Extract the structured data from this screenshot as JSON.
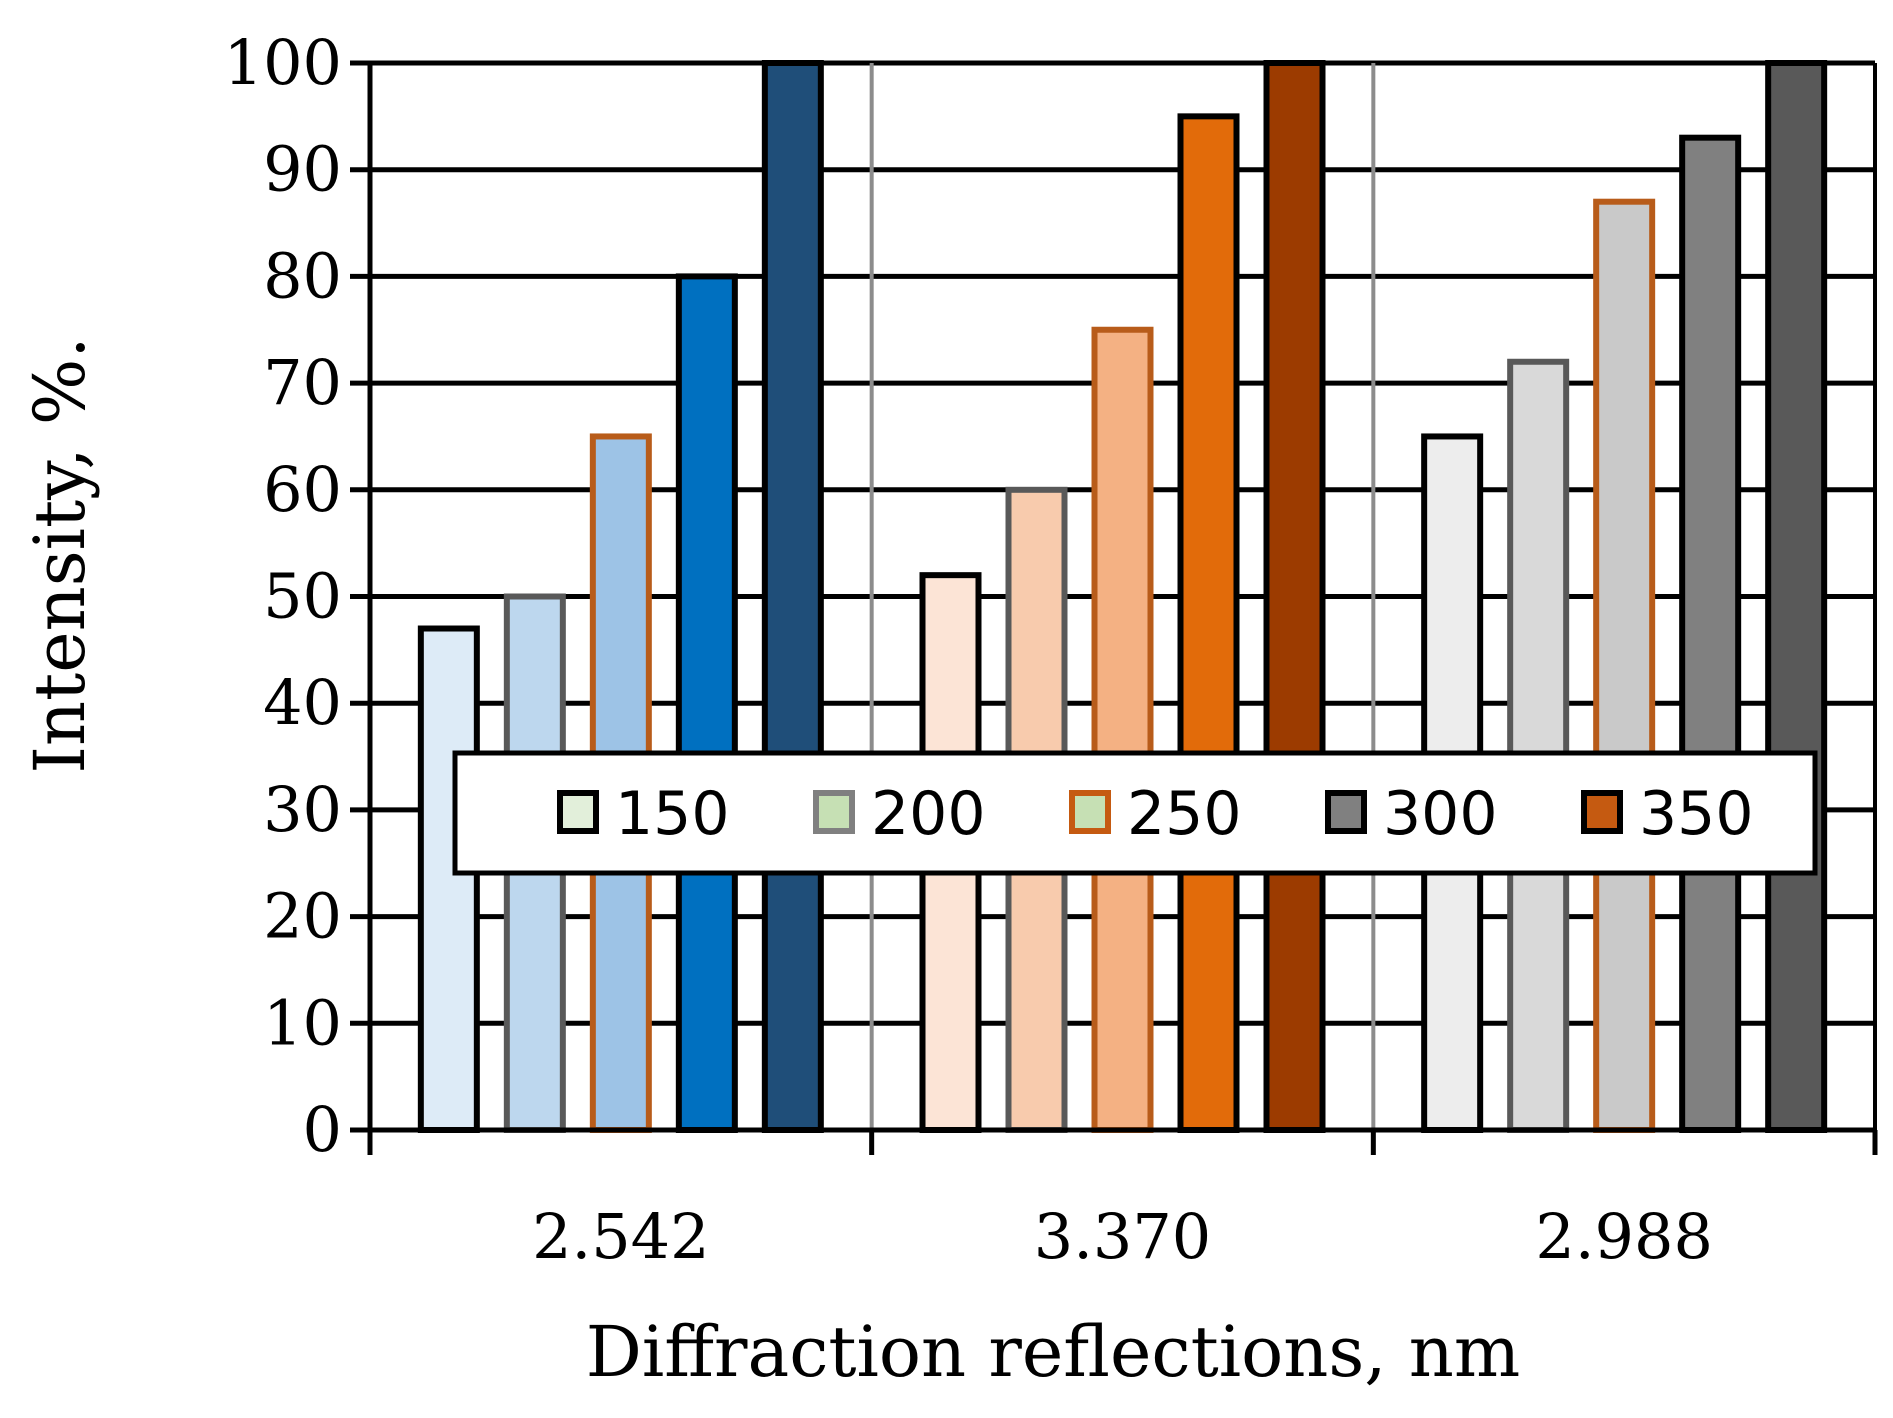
{
  "chart_data": {
    "type": "bar",
    "title": "",
    "xlabel": "Diffraction reflections, nm",
    "ylabel": "Intensity, %.",
    "ylim": [
      0,
      100
    ],
    "yticks": [
      0,
      10,
      20,
      30,
      40,
      50,
      60,
      70,
      80,
      90,
      100
    ],
    "grid": "horizontal",
    "legend_position": "center",
    "categories": [
      "2.542",
      "3.370",
      "2.988"
    ],
    "series": [
      {
        "name": "150",
        "values": [
          47,
          52,
          65
        ]
      },
      {
        "name": "200",
        "values": [
          50,
          60,
          72
        ]
      },
      {
        "name": "250",
        "values": [
          65,
          75,
          87
        ]
      },
      {
        "name": "300",
        "values": [
          80,
          95,
          93
        ]
      },
      {
        "name": "350",
        "values": [
          100,
          100,
          100
        ]
      }
    ],
    "bar_fills": [
      [
        "#ddebf7",
        "#bdd7ee",
        "#9dc3e6",
        "#0070c0",
        "#1f4e79"
      ],
      [
        "#fce4d6",
        "#f8cbad",
        "#f4b183",
        "#e26b0a",
        "#9c3b00"
      ],
      [
        "#ededed",
        "#d9d9d9",
        "#c9c9c9",
        "#808080",
        "#595959"
      ]
    ],
    "bar_strokes": [
      "#000000",
      "#595959",
      "#b85c1a",
      "#000000",
      "#000000"
    ],
    "legend_swatches": [
      {
        "fill": "#e2efda",
        "stroke": "#000000"
      },
      {
        "fill": "#c6e0b4",
        "stroke": "#808080"
      },
      {
        "fill": "#c6e0b4",
        "stroke": "#c55a11"
      },
      {
        "fill": "#808080",
        "stroke": "#000000"
      },
      {
        "fill": "#c55a11",
        "stroke": "#000000"
      }
    ]
  }
}
